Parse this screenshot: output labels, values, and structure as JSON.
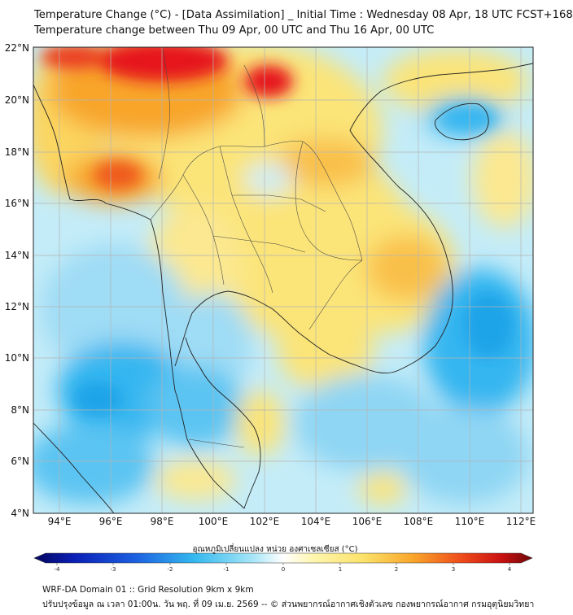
{
  "header": {
    "title_line1": "Temperature Change (°C) - [Data Assimilation] _ Initial Time : Wednesday 08 Apr, 18 UTC FCST+168",
    "title_line2": "Temperature change between Thu 09 Apr, 00 UTC and Thu 16 Apr, 00 UTC"
  },
  "axes": {
    "lat_labels": [
      "22°N",
      "20°N",
      "18°N",
      "16°N",
      "14°N",
      "12°N",
      "10°N",
      "8°N",
      "6°N",
      "4°N"
    ],
    "lon_labels": [
      "94°E",
      "96°E",
      "98°E",
      "100°E",
      "102°E",
      "104°E",
      "106°E",
      "108°E",
      "110°E",
      "112°E"
    ]
  },
  "colorbar": {
    "label": "อุณหภูมิเปลี่ยนแปลง หน่วย องศาเซลเซียส (°C)",
    "ticks": [
      "-4",
      "-3",
      "-2",
      "-1",
      "0",
      "1",
      "2",
      "3",
      "4"
    ],
    "range": [
      -4,
      4
    ]
  },
  "footer": {
    "line1": "WRF-DA Domain 01 :: Grid Resolution 9km x 9km",
    "line2": "ปรับปรุงข้อมูล ณ เวลา 01:00น. วัน พฤ. ที่ 09 เม.ย. 2569 -- © ส่วนพยากรณ์อากาศเชิงตัวเลข กองพยากรณ์อากาศ กรมอุตุนิยมวิทยา"
  },
  "colors": {
    "background_field": "#c4ecf8",
    "cold_blue": "#34b6f0",
    "warm_yellow": "#fbe478",
    "warm_orange": "#f8a52a",
    "hot_red": "#e6151a",
    "grid": "#b5b5b5",
    "borders": "#222222"
  }
}
